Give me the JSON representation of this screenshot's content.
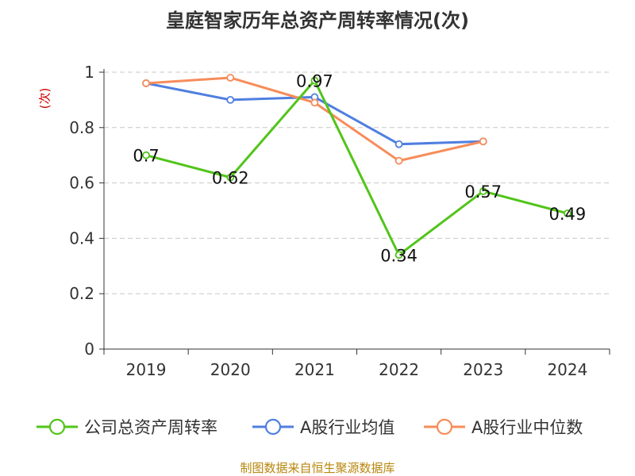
{
  "chart_data": {
    "type": "line",
    "title": "皇庭智家历年总资产周转率情况(次)",
    "ylabel": "(次)",
    "xlabel": "",
    "categories": [
      "2019",
      "2020",
      "2021",
      "2022",
      "2023",
      "2024"
    ],
    "yticks": [
      "0",
      "0.2",
      "0.4",
      "0.6",
      "0.8",
      "1"
    ],
    "ylim": [
      0,
      1
    ],
    "grid": true,
    "legend_position": "bottom",
    "series": [
      {
        "name": "公司总资产周转率",
        "color": "#52c41a",
        "values": [
          0.7,
          0.62,
          0.97,
          0.34,
          0.57,
          0.49
        ],
        "labels": [
          "0.7",
          "0.62",
          "0.97",
          "0.34",
          "0.57",
          "0.49"
        ]
      },
      {
        "name": "A股行业均值",
        "color": "#4f7fe0",
        "values": [
          0.96,
          0.9,
          0.91,
          0.74,
          0.75,
          null
        ],
        "labels": []
      },
      {
        "name": "A股行业中位数",
        "color": "#f78c5a",
        "values": [
          0.96,
          0.98,
          0.89,
          0.68,
          0.75,
          null
        ],
        "labels": []
      }
    ]
  },
  "footer": {
    "source": "制图数据来自恒生聚源数据库"
  }
}
